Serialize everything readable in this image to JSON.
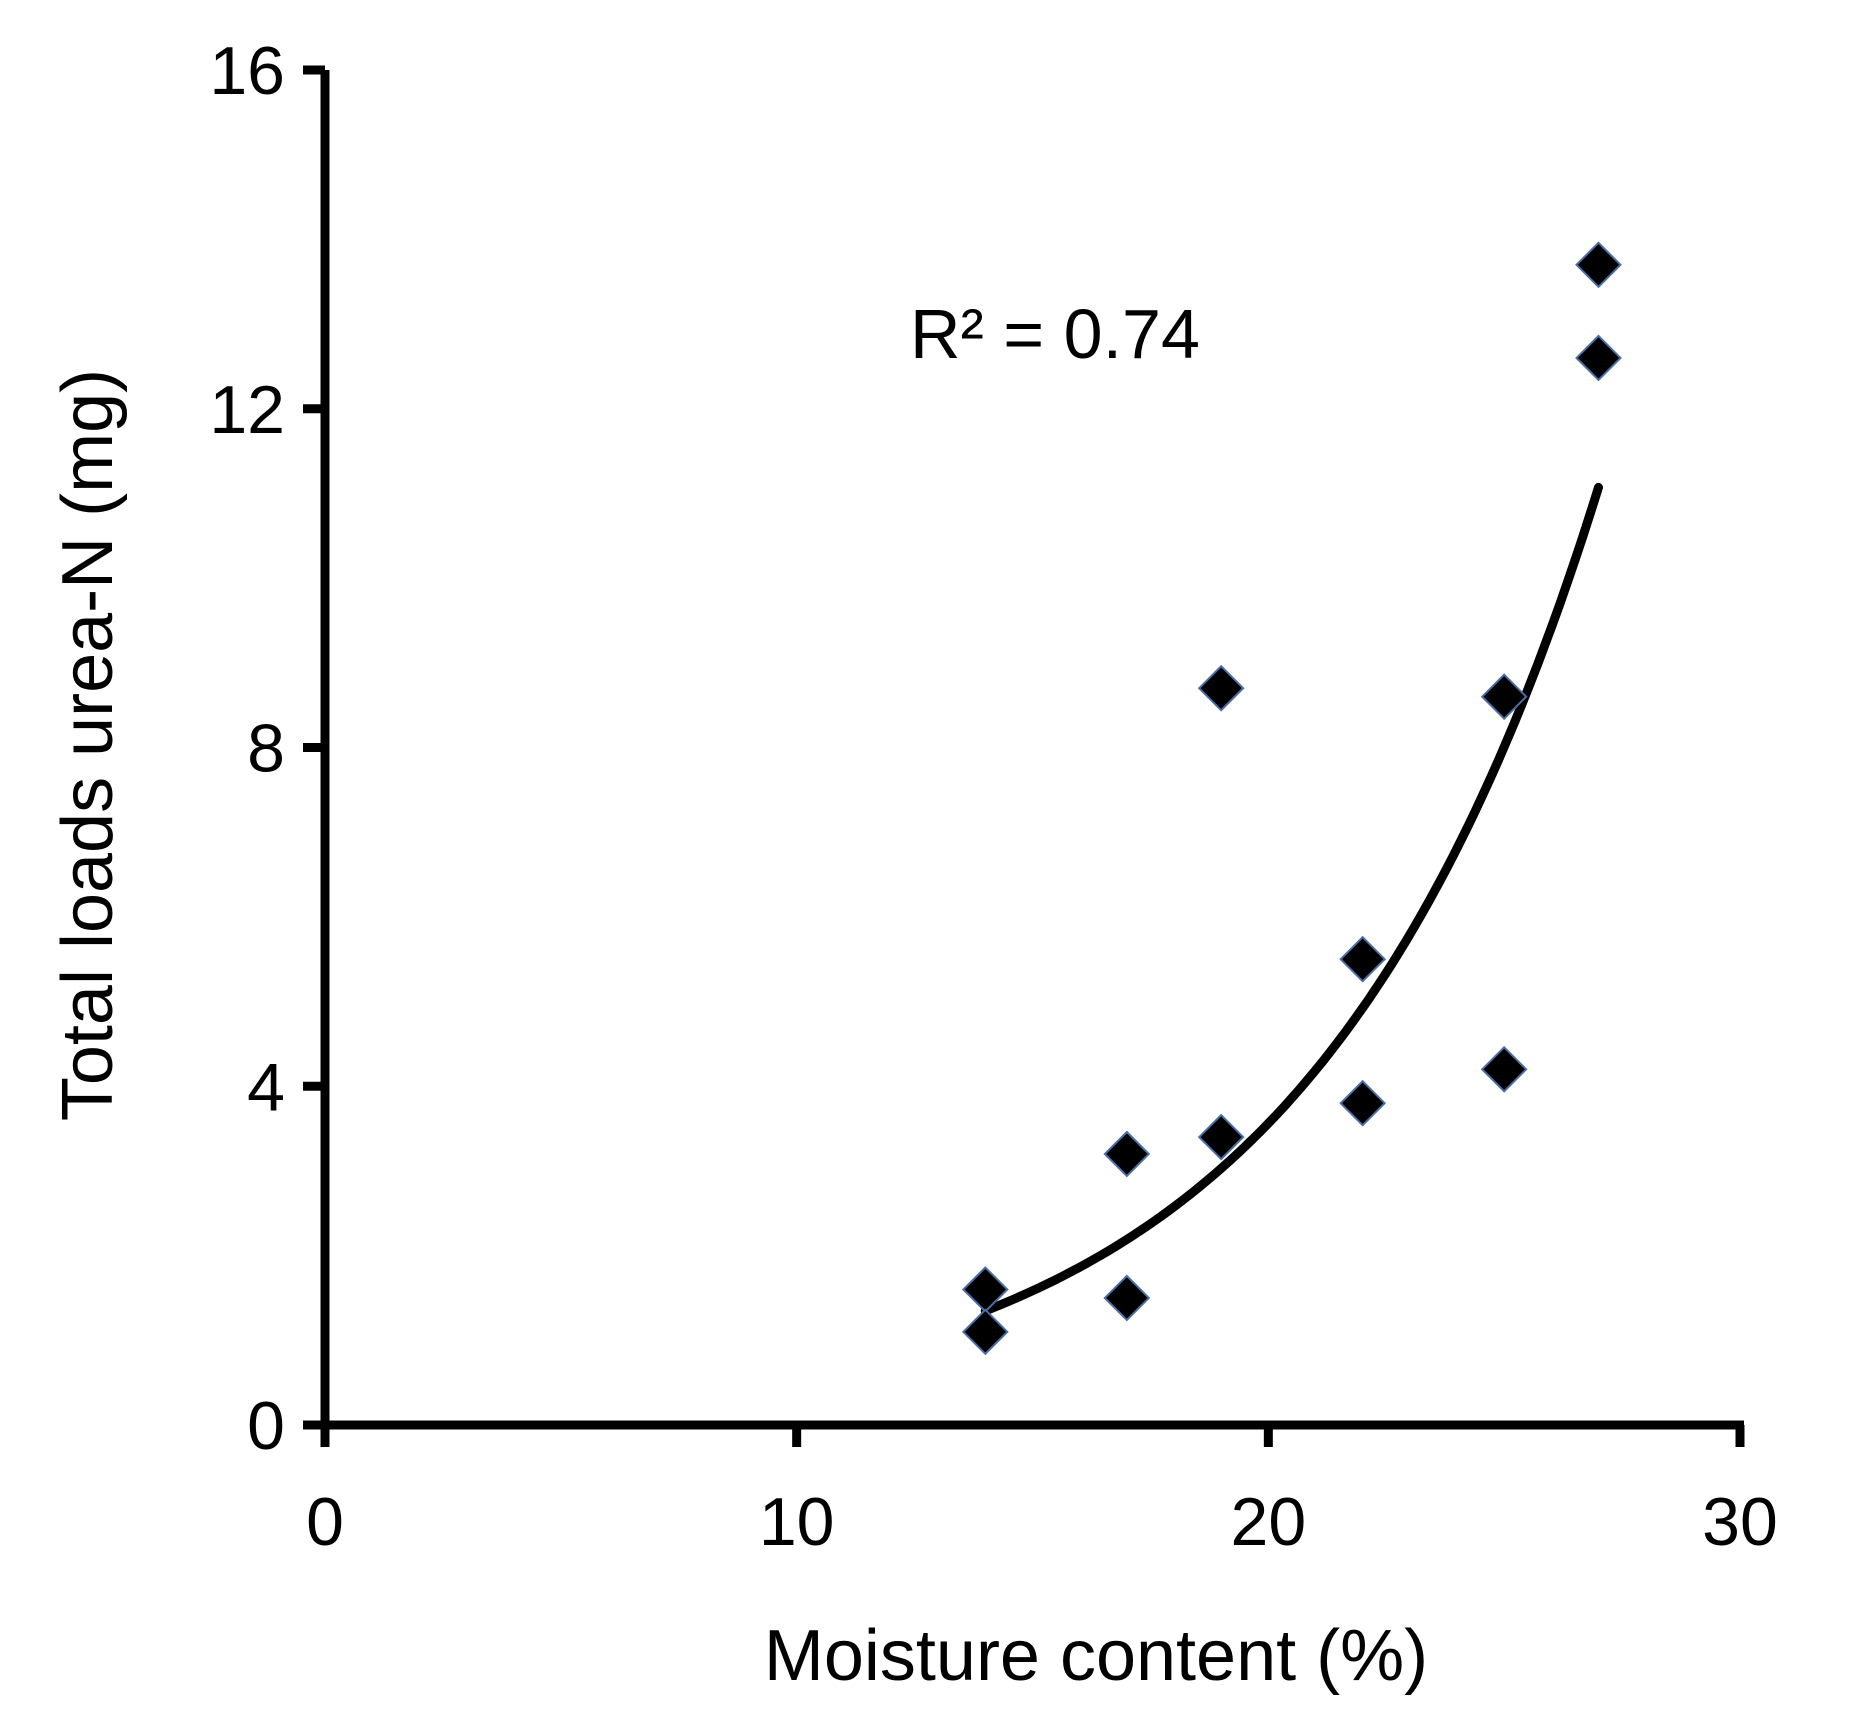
{
  "chart_data": {
    "type": "scatter",
    "title": "",
    "xlabel": "Moisture content (%)",
    "ylabel": "Total loads urea-N (mg)",
    "xlim": [
      0,
      30
    ],
    "ylim": [
      0,
      16
    ],
    "x_ticks": [
      0,
      10,
      20,
      30
    ],
    "y_ticks": [
      0,
      4,
      8,
      12,
      16
    ],
    "x_tick_labels": [
      "0",
      "10",
      "20",
      "30"
    ],
    "y_tick_labels": [
      "0",
      "4",
      "8",
      "12",
      "16"
    ],
    "grid": false,
    "legend": null,
    "annotation": "R² = 0.74",
    "series": [
      {
        "marker": "diamond",
        "color": "#000000",
        "edge_color": "#4a6fa5",
        "points": [
          {
            "x": 14,
            "y": 1.6
          },
          {
            "x": 14,
            "y": 1.1
          },
          {
            "x": 17,
            "y": 3.2
          },
          {
            "x": 17,
            "y": 1.5
          },
          {
            "x": 19,
            "y": 8.7
          },
          {
            "x": 19,
            "y": 3.4
          },
          {
            "x": 22,
            "y": 5.5
          },
          {
            "x": 22,
            "y": 3.8
          },
          {
            "x": 25,
            "y": 8.6
          },
          {
            "x": 25,
            "y": 4.2
          },
          {
            "x": 27,
            "y": 13.7
          },
          {
            "x": 27,
            "y": 12.6
          }
        ]
      }
    ],
    "trendline": {
      "type": "exponential",
      "color": "#000000",
      "x_range": [
        14,
        27
      ],
      "a": 0.1395,
      "b": 0.162
    }
  }
}
